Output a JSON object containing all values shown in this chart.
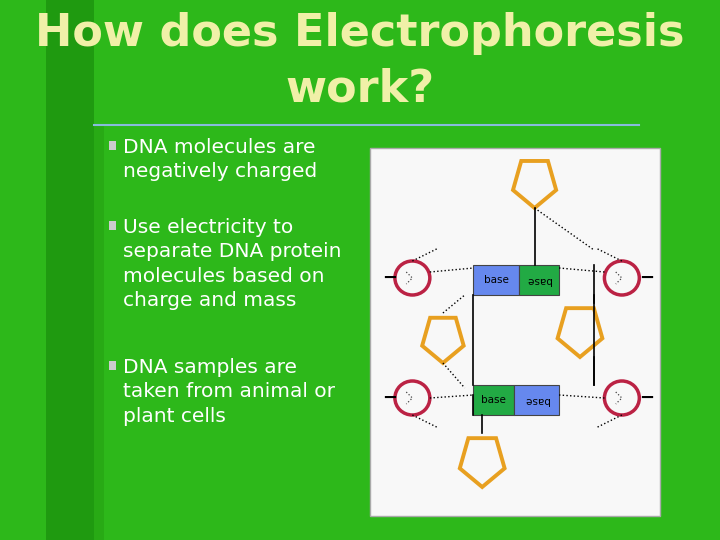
{
  "title_line1": "How does Electrophoresis",
  "title_line2": "work?",
  "title_color": "#f0f0a8",
  "bg_color": "#1f9a10",
  "bg_color2": "#2db81a",
  "bullet_color": "#ffffff",
  "bullets": [
    "DNA molecules are\nnegatively charged",
    "Use electricity to\nseparate DNA protein\nmolecules based on\ncharge and mass",
    "DNA samples are\ntaken from animal or\nplant cells"
  ],
  "diagram_bg": "#f8f8f8",
  "pentagon_color": "#e8a020",
  "pentagon_lw": 2.8,
  "circle_color": "#bb2244",
  "circle_lw": 2.5,
  "base_blue": "#6688ee",
  "base_green": "#22aa44",
  "line_color": "#000000",
  "minus_color": "#000000",
  "title_fontsize": 32,
  "bullet_fontsize": 14.5,
  "separator_color": "#88bbdd"
}
